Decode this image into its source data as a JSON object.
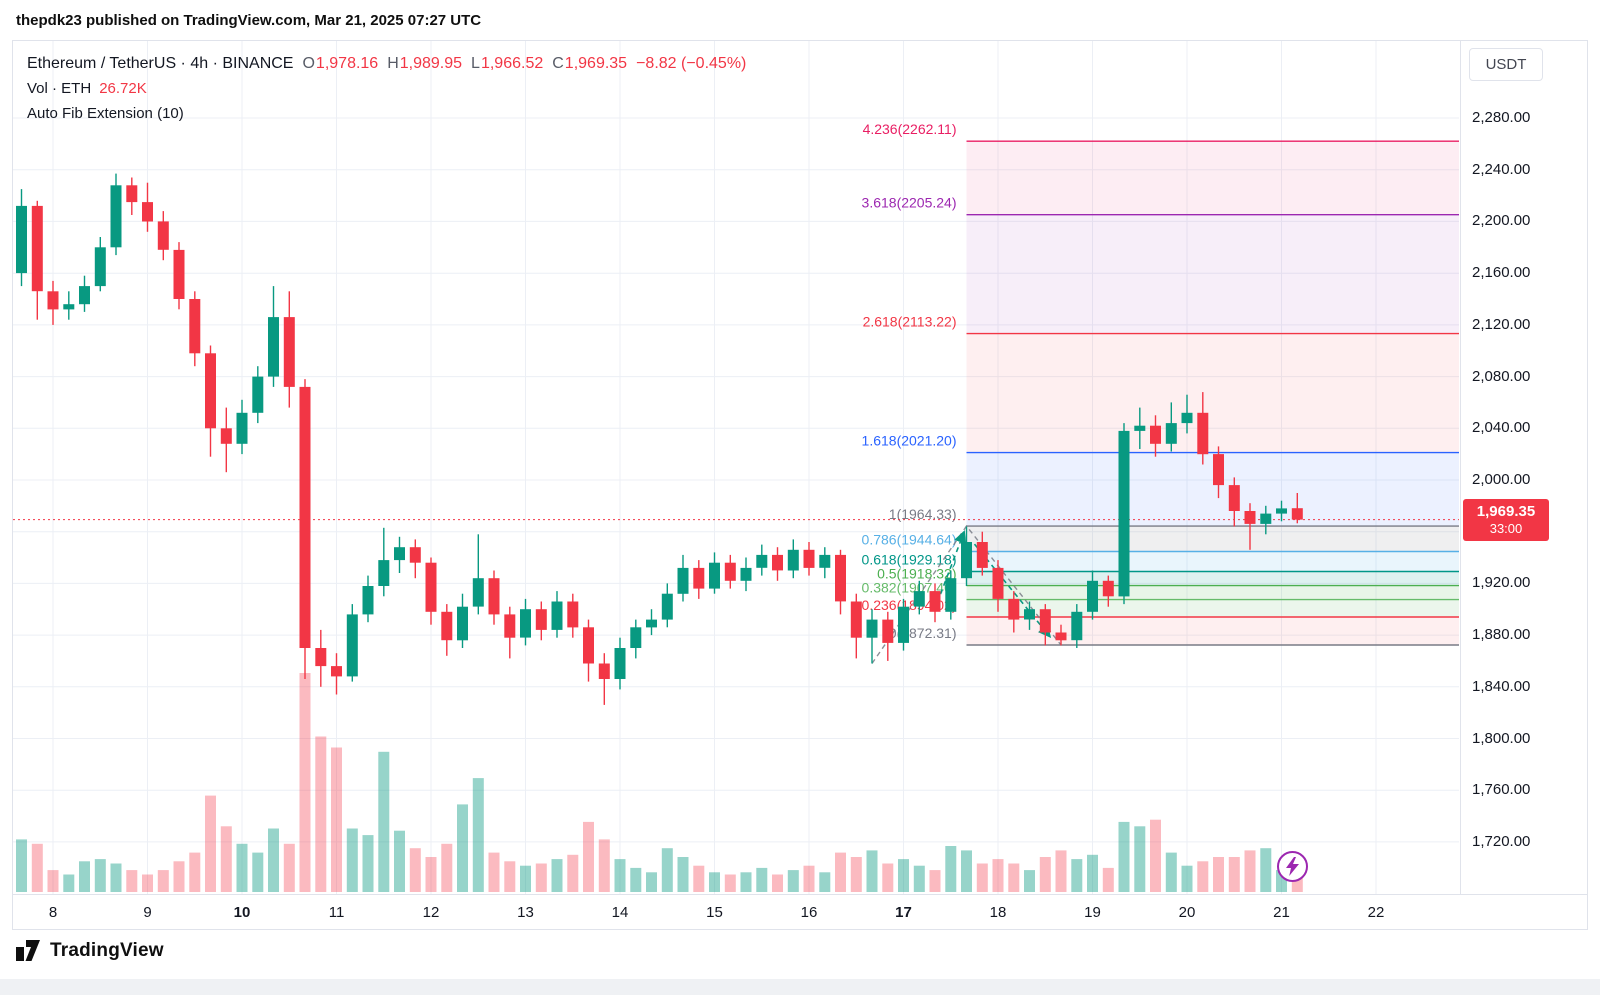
{
  "header": {
    "publish_line": "thepdk23 published on TradingView.com, Mar 21, 2025 07:27 UTC"
  },
  "legend": {
    "title": "Ethereum / TetherUS · 4h · BINANCE",
    "o_label": "O",
    "o_value": "1,978.16",
    "h_label": "H",
    "h_value": "1,989.95",
    "l_label": "L",
    "l_value": "1,966.52",
    "c_label": "C",
    "c_value": "1,969.35",
    "change": "−8.82 (−0.45%)",
    "vol_label": "Vol · ETH",
    "vol_value": "26.72K",
    "indicator": "Auto Fib Extension (10)"
  },
  "price_scale": {
    "currency": "USDT",
    "tag_price": "1,969.35",
    "tag_countdown": "33:00"
  },
  "footer": {
    "brand": "TradingView"
  },
  "chart_data": {
    "type": "candlestick",
    "symbol": "Ethereum / TetherUS",
    "exchange": "BINANCE",
    "interval": "4h",
    "title": "Ethereum / TetherUS · 4h · BINANCE",
    "y_range": {
      "top": 2339.6,
      "bottom": 1679.7
    },
    "y_axis": {
      "ticks": [
        {
          "p": 2280,
          "t": "2,280.00"
        },
        {
          "p": 2240,
          "t": "2,240.00"
        },
        {
          "p": 2200,
          "t": "2,200.00"
        },
        {
          "p": 2160,
          "t": "2,160.00"
        },
        {
          "p": 2120,
          "t": "2,120.00"
        },
        {
          "p": 2080,
          "t": "2,080.00"
        },
        {
          "p": 2040,
          "t": "2,040.00"
        },
        {
          "p": 2000,
          "t": "2,000.00"
        },
        {
          "p": 1960,
          "t": "1,960.00"
        },
        {
          "p": 1920,
          "t": "1,920.00"
        },
        {
          "p": 1880,
          "t": "1,880.00"
        },
        {
          "p": 1840,
          "t": "1,840.00"
        },
        {
          "p": 1800,
          "t": "1,800.00"
        },
        {
          "p": 1760,
          "t": "1,760.00"
        },
        {
          "p": 1720,
          "t": "1,720.00"
        }
      ]
    },
    "x_axis": {
      "labels": [
        {
          "t": "8",
          "i": 2
        },
        {
          "t": "9",
          "i": 8
        },
        {
          "t": "10",
          "i": 14,
          "bold": true
        },
        {
          "t": "11",
          "i": 20
        },
        {
          "t": "12",
          "i": 26
        },
        {
          "t": "13",
          "i": 32
        },
        {
          "t": "14",
          "i": 38
        },
        {
          "t": "15",
          "i": 44
        },
        {
          "t": "16",
          "i": 50
        },
        {
          "t": "17",
          "i": 56,
          "bold": true
        },
        {
          "t": "18",
          "i": 62
        },
        {
          "t": "19",
          "i": 68
        },
        {
          "t": "20",
          "i": 74
        },
        {
          "t": "21",
          "i": 80
        },
        {
          "t": "22",
          "i": 86
        }
      ]
    },
    "candles": [
      [
        2160,
        2225,
        2150,
        2212
      ],
      [
        2212,
        2216,
        2124,
        2146
      ],
      [
        2146,
        2154,
        2120,
        2132
      ],
      [
        2132,
        2146,
        2124,
        2136
      ],
      [
        2136,
        2158,
        2130,
        2150
      ],
      [
        2150,
        2188,
        2146,
        2180
      ],
      [
        2180,
        2237,
        2174,
        2228
      ],
      [
        2228,
        2234,
        2205,
        2215
      ],
      [
        2215,
        2230,
        2192,
        2200
      ],
      [
        2200,
        2208,
        2170,
        2178
      ],
      [
        2178,
        2184,
        2132,
        2140
      ],
      [
        2140,
        2146,
        2088,
        2098
      ],
      [
        2098,
        2104,
        2018,
        2040
      ],
      [
        2040,
        2056,
        2006,
        2028
      ],
      [
        2028,
        2062,
        2020,
        2052
      ],
      [
        2052,
        2088,
        2044,
        2080
      ],
      [
        2080,
        2150,
        2072,
        2126
      ],
      [
        2126,
        2146,
        2056,
        2072
      ],
      [
        2072,
        2078,
        1846,
        1870
      ],
      [
        1870,
        1884,
        1840,
        1856
      ],
      [
        1856,
        1866,
        1834,
        1848
      ],
      [
        1848,
        1904,
        1844,
        1896
      ],
      [
        1896,
        1926,
        1890,
        1918
      ],
      [
        1918,
        1963,
        1910,
        1938
      ],
      [
        1938,
        1956,
        1928,
        1948
      ],
      [
        1948,
        1954,
        1924,
        1936
      ],
      [
        1936,
        1940,
        1888,
        1898
      ],
      [
        1898,
        1904,
        1864,
        1876
      ],
      [
        1876,
        1912,
        1870,
        1902
      ],
      [
        1902,
        1958,
        1896,
        1924
      ],
      [
        1924,
        1930,
        1888,
        1896
      ],
      [
        1896,
        1902,
        1862,
        1878
      ],
      [
        1878,
        1908,
        1872,
        1900
      ],
      [
        1900,
        1906,
        1876,
        1884
      ],
      [
        1884,
        1914,
        1878,
        1906
      ],
      [
        1906,
        1912,
        1878,
        1886
      ],
      [
        1886,
        1892,
        1844,
        1858
      ],
      [
        1858,
        1866,
        1826,
        1846
      ],
      [
        1846,
        1878,
        1838,
        1870
      ],
      [
        1870,
        1892,
        1862,
        1886
      ],
      [
        1886,
        1900,
        1880,
        1892
      ],
      [
        1892,
        1920,
        1886,
        1912
      ],
      [
        1912,
        1942,
        1906,
        1932
      ],
      [
        1932,
        1938,
        1908,
        1916
      ],
      [
        1916,
        1944,
        1912,
        1936
      ],
      [
        1936,
        1942,
        1916,
        1922
      ],
      [
        1922,
        1940,
        1914,
        1932
      ],
      [
        1932,
        1950,
        1926,
        1942
      ],
      [
        1942,
        1948,
        1922,
        1930
      ],
      [
        1930,
        1954,
        1924,
        1946
      ],
      [
        1946,
        1952,
        1926,
        1932
      ],
      [
        1932,
        1948,
        1924,
        1942
      ],
      [
        1942,
        1946,
        1896,
        1906
      ],
      [
        1906,
        1912,
        1862,
        1878
      ],
      [
        1878,
        1900,
        1858,
        1892
      ],
      [
        1892,
        1898,
        1860,
        1874
      ],
      [
        1874,
        1908,
        1868,
        1902
      ],
      [
        1902,
        1922,
        1896,
        1914
      ],
      [
        1914,
        1920,
        1890,
        1898
      ],
      [
        1898,
        1930,
        1892,
        1924
      ],
      [
        1924,
        1964,
        1918,
        1952
      ],
      [
        1952,
        1960,
        1926,
        1932
      ],
      [
        1932,
        1938,
        1898,
        1908
      ],
      [
        1908,
        1914,
        1882,
        1892
      ],
      [
        1892,
        1906,
        1884,
        1900
      ],
      [
        1900,
        1904,
        1872,
        1882
      ],
      [
        1882,
        1888,
        1872,
        1876
      ],
      [
        1876,
        1904,
        1870,
        1898
      ],
      [
        1898,
        1930,
        1892,
        1922
      ],
      [
        1922,
        1926,
        1902,
        1910
      ],
      [
        1910,
        2044,
        1904,
        2038
      ],
      [
        2038,
        2056,
        2024,
        2042
      ],
      [
        2042,
        2050,
        2018,
        2028
      ],
      [
        2028,
        2060,
        2022,
        2044
      ],
      [
        2044,
        2066,
        2036,
        2052
      ],
      [
        2052,
        2068,
        2012,
        2020
      ],
      [
        2020,
        2026,
        1986,
        1996
      ],
      [
        1996,
        2002,
        1964,
        1976
      ],
      [
        1976,
        1982,
        1946,
        1966
      ],
      [
        1966,
        1980,
        1958,
        1974
      ],
      [
        1974,
        1984,
        1968,
        1978
      ],
      [
        1978.16,
        1989.95,
        1966.52,
        1969.35
      ]
    ],
    "volumes": [
      24,
      22,
      10,
      8,
      14,
      15,
      13,
      10,
      8,
      10,
      14,
      18,
      44,
      30,
      22,
      18,
      29,
      22,
      100,
      71,
      66,
      29,
      26,
      64,
      28,
      20,
      16,
      22,
      40,
      52,
      18,
      14,
      12,
      13,
      15,
      17,
      32,
      24,
      15,
      11,
      9,
      20,
      16,
      12,
      9,
      8,
      9,
      11,
      8,
      10,
      12,
      9,
      18,
      16,
      19,
      13,
      15,
      12,
      10,
      21,
      19,
      13,
      15,
      13,
      10,
      16,
      19,
      15,
      17,
      11,
      32,
      30,
      33,
      18,
      12,
      14,
      16,
      16,
      19,
      20,
      10,
      7
    ],
    "colors": {
      "up": "#089981",
      "down": "#f23645",
      "vol_up": "rgba(8,153,129,0.42)",
      "vol_down": "rgba(242,54,69,0.34)",
      "grid": "#eceff5",
      "last_price": "#f23645",
      "pivot_dash": "#787b86",
      "arrow": "#089981"
    },
    "last_price": {
      "value": 1969.35,
      "direction": "down"
    },
    "fib": {
      "indicator": "Auto Fib Extension (10)",
      "pivots": {
        "a": {
          "index": 54,
          "price": 1858
        },
        "b": {
          "index": 60,
          "price": 1964.33
        },
        "c": {
          "index": 66,
          "price": 1872.31
        }
      },
      "levels": [
        {
          "label": "4.236",
          "value": "2262.11",
          "price": 2262.11,
          "color": "#e91e63",
          "fill": "rgba(233,30,99,0.08)"
        },
        {
          "label": "3.618",
          "value": "2205.24",
          "price": 2205.24,
          "color": "#9c27b0",
          "fill": "rgba(156,39,176,0.08)"
        },
        {
          "label": "2.618",
          "value": "2113.22",
          "price": 2113.22,
          "color": "#f23645",
          "fill": "rgba(242,54,69,0.08)"
        },
        {
          "label": "1.618",
          "value": "2021.20",
          "price": 2021.2,
          "color": "#2962ff",
          "fill": "rgba(41,98,255,0.09)"
        },
        {
          "label": "1",
          "value": "1964.33",
          "price": 1964.33,
          "color": "#787b86",
          "fill": "rgba(120,123,134,0.12)"
        },
        {
          "label": "0.786",
          "value": "1944.64",
          "price": 1944.64,
          "color": "#57b0e6",
          "fill": "rgba(87,176,230,0.13)"
        },
        {
          "label": "0.618",
          "value": "1929.18",
          "price": 1929.18,
          "color": "#009688",
          "fill": "rgba(0,150,136,0.13)"
        },
        {
          "label": "0.5",
          "value": "1918.32",
          "price": 1918.32,
          "color": "#4caf50",
          "fill": "rgba(76,175,80,0.13)"
        },
        {
          "label": "0.382",
          "value": "1907.46",
          "price": 1907.46,
          "color": "#66bb6a",
          "fill": "rgba(102,187,106,0.13)"
        },
        {
          "label": "0.236",
          "value": "1894.02",
          "price": 1894.02,
          "color": "#f23645",
          "fill": "rgba(242,54,69,0.08)"
        },
        {
          "label": "0",
          "value": "1872.31",
          "price": 1872.31,
          "color": "#787b86",
          "fill": null
        }
      ]
    }
  }
}
